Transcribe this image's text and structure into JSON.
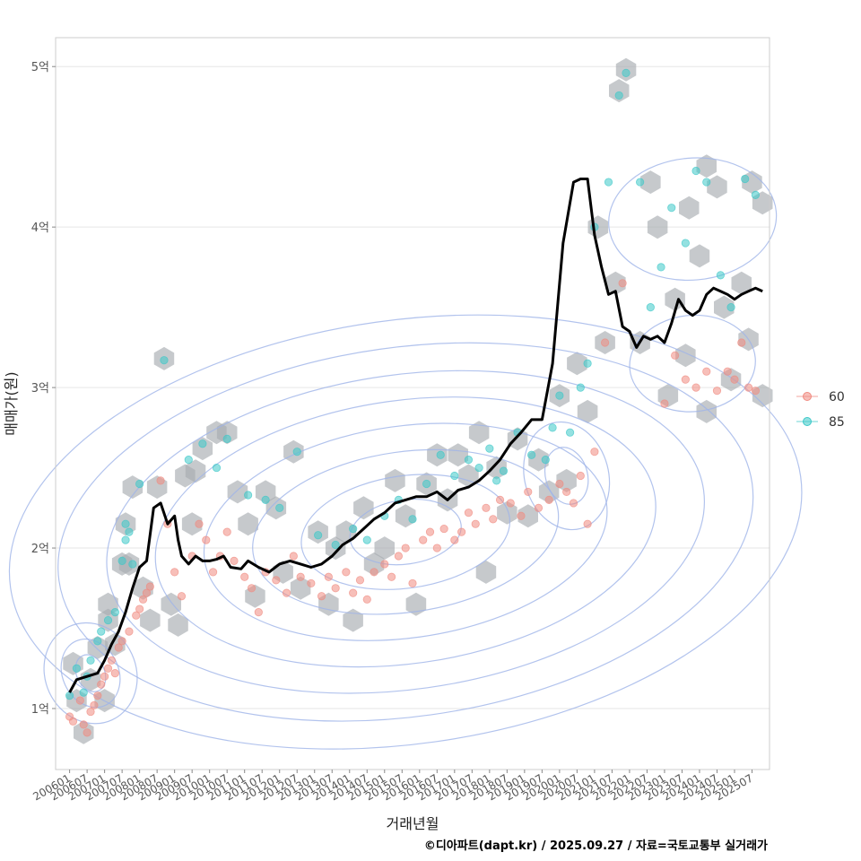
{
  "chart_data": {
    "type": "scatter",
    "title": "",
    "xlabel": "거래년월",
    "ylabel": "매매가(원)",
    "caption": "©디아파트(dapt.kr) / 2025.09.27 / 자료=국토교통부 실거래가",
    "x_tick_labels": [
      "200601",
      "200607",
      "200701",
      "200707",
      "200801",
      "200807",
      "200901",
      "200907",
      "201001",
      "201007",
      "201101",
      "201107",
      "201201",
      "201207",
      "201301",
      "201307",
      "201401",
      "201407",
      "201501",
      "201507",
      "201601",
      "201607",
      "201701",
      "201707",
      "201801",
      "201807",
      "201901",
      "201907",
      "202001",
      "202007",
      "202101",
      "202107",
      "202201",
      "202207",
      "202301",
      "202307",
      "202401",
      "202407",
      "202501",
      "202507"
    ],
    "y_ticks": [
      {
        "value": 1,
        "label": "1억"
      },
      {
        "value": 2,
        "label": "2억"
      },
      {
        "value": 3,
        "label": "3억"
      },
      {
        "value": 4,
        "label": "4억"
      },
      {
        "value": 5,
        "label": "5억"
      }
    ],
    "ylim": [
      0.62,
      5.18
    ],
    "xlim": [
      2005.6,
      2026.0
    ],
    "grid": true,
    "legend_position": "right",
    "colors": {
      "60": "#f08a80",
      "85": "#3cc8c8",
      "line": "#000000",
      "contour": "#9fb4e8",
      "hex": "#a8acb1"
    },
    "series": [
      {
        "name": "60",
        "points": [
          [
            2006.0,
            0.95
          ],
          [
            2006.1,
            0.92
          ],
          [
            2006.3,
            1.05
          ],
          [
            2006.4,
            0.9
          ],
          [
            2006.5,
            0.85
          ],
          [
            2006.6,
            0.98
          ],
          [
            2006.7,
            1.02
          ],
          [
            2006.8,
            1.08
          ],
          [
            2006.9,
            1.15
          ],
          [
            2007.0,
            1.2
          ],
          [
            2007.1,
            1.25
          ],
          [
            2007.2,
            1.3
          ],
          [
            2007.3,
            1.22
          ],
          [
            2007.4,
            1.38
          ],
          [
            2007.5,
            1.42
          ],
          [
            2007.7,
            1.48
          ],
          [
            2007.9,
            1.58
          ],
          [
            2008.0,
            1.62
          ],
          [
            2008.1,
            1.68
          ],
          [
            2008.2,
            1.72
          ],
          [
            2008.3,
            1.76
          ],
          [
            2008.6,
            2.42
          ],
          [
            2008.8,
            2.15
          ],
          [
            2009.0,
            1.85
          ],
          [
            2009.2,
            1.7
          ],
          [
            2009.5,
            1.95
          ],
          [
            2009.7,
            2.15
          ],
          [
            2009.9,
            2.05
          ],
          [
            2010.1,
            1.85
          ],
          [
            2010.3,
            1.95
          ],
          [
            2010.5,
            2.1
          ],
          [
            2010.7,
            1.92
          ],
          [
            2011.0,
            1.82
          ],
          [
            2011.2,
            1.75
          ],
          [
            2011.4,
            1.6
          ],
          [
            2011.6,
            1.85
          ],
          [
            2011.9,
            1.8
          ],
          [
            2012.2,
            1.72
          ],
          [
            2012.4,
            1.95
          ],
          [
            2012.6,
            1.82
          ],
          [
            2012.9,
            1.78
          ],
          [
            2013.2,
            1.7
          ],
          [
            2013.4,
            1.82
          ],
          [
            2013.6,
            1.75
          ],
          [
            2013.9,
            1.85
          ],
          [
            2014.1,
            1.72
          ],
          [
            2014.3,
            1.8
          ],
          [
            2014.5,
            1.68
          ],
          [
            2014.7,
            1.85
          ],
          [
            2015.0,
            1.9
          ],
          [
            2015.2,
            1.82
          ],
          [
            2015.4,
            1.95
          ],
          [
            2015.6,
            2.0
          ],
          [
            2015.8,
            1.78
          ],
          [
            2016.1,
            2.05
          ],
          [
            2016.3,
            2.1
          ],
          [
            2016.5,
            2.0
          ],
          [
            2016.7,
            2.12
          ],
          [
            2017.0,
            2.05
          ],
          [
            2017.2,
            2.1
          ],
          [
            2017.4,
            2.22
          ],
          [
            2017.6,
            2.15
          ],
          [
            2017.9,
            2.25
          ],
          [
            2018.1,
            2.18
          ],
          [
            2018.3,
            2.3
          ],
          [
            2018.6,
            2.28
          ],
          [
            2018.9,
            2.2
          ],
          [
            2019.1,
            2.35
          ],
          [
            2019.4,
            2.25
          ],
          [
            2019.7,
            2.3
          ],
          [
            2020.0,
            2.4
          ],
          [
            2020.2,
            2.35
          ],
          [
            2020.4,
            2.28
          ],
          [
            2020.6,
            2.45
          ],
          [
            2020.8,
            2.15
          ],
          [
            2021.0,
            2.6
          ],
          [
            2021.3,
            3.28
          ],
          [
            2021.8,
            3.65
          ],
          [
            2023.0,
            2.9
          ],
          [
            2023.3,
            3.2
          ],
          [
            2023.6,
            3.05
          ],
          [
            2023.9,
            3.0
          ],
          [
            2024.2,
            3.1
          ],
          [
            2024.5,
            2.98
          ],
          [
            2024.8,
            3.1
          ],
          [
            2025.0,
            3.05
          ],
          [
            2025.2,
            3.28
          ],
          [
            2025.4,
            3.0
          ],
          [
            2025.6,
            2.98
          ]
        ]
      },
      {
        "name": "85",
        "points": [
          [
            2006.0,
            1.08
          ],
          [
            2006.2,
            1.25
          ],
          [
            2006.4,
            1.1
          ],
          [
            2006.5,
            1.2
          ],
          [
            2006.6,
            1.3
          ],
          [
            2006.8,
            1.42
          ],
          [
            2006.9,
            1.48
          ],
          [
            2007.1,
            1.55
          ],
          [
            2007.3,
            1.6
          ],
          [
            2007.5,
            1.92
          ],
          [
            2007.6,
            2.05
          ],
          [
            2007.6,
            2.15
          ],
          [
            2007.7,
            2.1
          ],
          [
            2007.8,
            1.9
          ],
          [
            2008.0,
            2.4
          ],
          [
            2008.7,
            3.17
          ],
          [
            2009.4,
            2.55
          ],
          [
            2009.8,
            2.65
          ],
          [
            2010.2,
            2.5
          ],
          [
            2010.5,
            2.68
          ],
          [
            2011.1,
            2.33
          ],
          [
            2011.6,
            2.3
          ],
          [
            2012.0,
            2.25
          ],
          [
            2012.5,
            2.6
          ],
          [
            2013.1,
            2.08
          ],
          [
            2013.6,
            2.02
          ],
          [
            2014.1,
            2.12
          ],
          [
            2014.5,
            2.05
          ],
          [
            2015.0,
            2.2
          ],
          [
            2015.4,
            2.3
          ],
          [
            2015.8,
            2.18
          ],
          [
            2016.2,
            2.4
          ],
          [
            2016.6,
            2.58
          ],
          [
            2017.0,
            2.45
          ],
          [
            2017.4,
            2.55
          ],
          [
            2017.7,
            2.5
          ],
          [
            2018.0,
            2.62
          ],
          [
            2018.2,
            2.42
          ],
          [
            2018.4,
            2.48
          ],
          [
            2018.8,
            2.72
          ],
          [
            2019.2,
            2.58
          ],
          [
            2019.6,
            2.55
          ],
          [
            2019.8,
            2.75
          ],
          [
            2020.0,
            2.95
          ],
          [
            2020.3,
            2.72
          ],
          [
            2020.6,
            3.0
          ],
          [
            2020.8,
            3.15
          ],
          [
            2021.0,
            4.0
          ],
          [
            2021.4,
            4.28
          ],
          [
            2021.7,
            4.82
          ],
          [
            2021.9,
            4.96
          ],
          [
            2022.3,
            4.28
          ],
          [
            2022.6,
            3.5
          ],
          [
            2022.9,
            3.75
          ],
          [
            2023.2,
            4.12
          ],
          [
            2023.6,
            3.9
          ],
          [
            2023.9,
            4.35
          ],
          [
            2024.2,
            4.28
          ],
          [
            2024.6,
            3.7
          ],
          [
            2024.9,
            3.5
          ],
          [
            2025.3,
            4.3
          ],
          [
            2025.6,
            4.2
          ]
        ]
      }
    ],
    "median_line": {
      "x": [
        2006.0,
        2006.2,
        2006.5,
        2006.8,
        2007.0,
        2007.2,
        2007.4,
        2007.6,
        2007.8,
        2008.0,
        2008.2,
        2008.4,
        2008.6,
        2008.8,
        2009.0,
        2009.1,
        2009.2,
        2009.4,
        2009.6,
        2009.8,
        2010.0,
        2010.2,
        2010.4,
        2010.6,
        2010.9,
        2011.1,
        2011.4,
        2011.7,
        2012.0,
        2012.3,
        2012.6,
        2012.9,
        2013.2,
        2013.5,
        2013.8,
        2014.1,
        2014.4,
        2014.7,
        2015.0,
        2015.3,
        2015.6,
        2015.9,
        2016.2,
        2016.5,
        2016.8,
        2017.1,
        2017.4,
        2017.7,
        2018.0,
        2018.3,
        2018.6,
        2018.9,
        2019.2,
        2019.5,
        2019.8,
        2020.1,
        2020.4,
        2020.6,
        2020.8,
        2021.0,
        2021.2,
        2021.4,
        2021.6,
        2021.8,
        2022.0,
        2022.2,
        2022.4,
        2022.6,
        2022.8,
        2023.0,
        2023.2,
        2023.4,
        2023.6,
        2023.8,
        2024.0,
        2024.2,
        2024.4,
        2024.6,
        2024.8,
        2025.0,
        2025.2,
        2025.4,
        2025.6,
        2025.8
      ],
      "y": [
        1.1,
        1.18,
        1.2,
        1.22,
        1.3,
        1.4,
        1.48,
        1.6,
        1.75,
        1.88,
        1.92,
        2.25,
        2.28,
        2.15,
        2.2,
        2.05,
        1.95,
        1.9,
        1.95,
        1.92,
        1.92,
        1.93,
        1.95,
        1.88,
        1.87,
        1.92,
        1.88,
        1.85,
        1.9,
        1.92,
        1.9,
        1.88,
        1.9,
        1.95,
        2.02,
        2.06,
        2.12,
        2.18,
        2.22,
        2.28,
        2.3,
        2.32,
        2.32,
        2.35,
        2.3,
        2.36,
        2.38,
        2.42,
        2.48,
        2.55,
        2.65,
        2.72,
        2.8,
        2.8,
        3.15,
        3.9,
        4.28,
        4.3,
        4.3,
        3.95,
        3.75,
        3.58,
        3.6,
        3.38,
        3.35,
        3.25,
        3.32,
        3.3,
        3.32,
        3.28,
        3.4,
        3.55,
        3.48,
        3.45,
        3.48,
        3.58,
        3.62,
        3.6,
        3.58,
        3.55,
        3.58,
        3.6,
        3.62,
        3.6
      ]
    },
    "hex_cells": [
      [
        2006.1,
        1.28
      ],
      [
        2006.2,
        1.05
      ],
      [
        2006.4,
        0.85
      ],
      [
        2006.6,
        1.18
      ],
      [
        2006.8,
        1.38
      ],
      [
        2007.0,
        1.05
      ],
      [
        2007.1,
        1.55
      ],
      [
        2007.1,
        1.65
      ],
      [
        2007.3,
        1.4
      ],
      [
        2007.5,
        1.9
      ],
      [
        2007.6,
        2.15
      ],
      [
        2007.7,
        1.9
      ],
      [
        2007.8,
        2.38
      ],
      [
        2008.1,
        1.75
      ],
      [
        2008.3,
        1.55
      ],
      [
        2008.5,
        2.38
      ],
      [
        2008.7,
        3.18
      ],
      [
        2008.9,
        1.65
      ],
      [
        2009.1,
        1.52
      ],
      [
        2009.3,
        2.45
      ],
      [
        2009.5,
        2.15
      ],
      [
        2009.6,
        2.48
      ],
      [
        2009.8,
        2.62
      ],
      [
        2010.2,
        2.72
      ],
      [
        2010.5,
        2.72
      ],
      [
        2010.8,
        2.35
      ],
      [
        2011.1,
        2.15
      ],
      [
        2011.3,
        1.7
      ],
      [
        2011.6,
        2.35
      ],
      [
        2011.9,
        2.25
      ],
      [
        2012.1,
        1.85
      ],
      [
        2012.4,
        2.6
      ],
      [
        2012.6,
        1.75
      ],
      [
        2013.1,
        2.1
      ],
      [
        2013.4,
        1.65
      ],
      [
        2013.6,
        2.0
      ],
      [
        2013.9,
        2.1
      ],
      [
        2014.1,
        1.55
      ],
      [
        2014.4,
        2.25
      ],
      [
        2014.7,
        1.9
      ],
      [
        2015.0,
        2.0
      ],
      [
        2015.3,
        2.42
      ],
      [
        2015.6,
        2.2
      ],
      [
        2015.9,
        1.65
      ],
      [
        2016.2,
        2.4
      ],
      [
        2016.5,
        2.58
      ],
      [
        2016.8,
        2.3
      ],
      [
        2017.1,
        2.58
      ],
      [
        2017.4,
        2.45
      ],
      [
        2017.7,
        2.72
      ],
      [
        2017.9,
        1.85
      ],
      [
        2018.2,
        2.5
      ],
      [
        2018.5,
        2.22
      ],
      [
        2018.8,
        2.68
      ],
      [
        2019.1,
        2.2
      ],
      [
        2019.4,
        2.55
      ],
      [
        2019.7,
        2.35
      ],
      [
        2020.0,
        2.95
      ],
      [
        2020.2,
        2.42
      ],
      [
        2020.5,
        3.15
      ],
      [
        2020.8,
        2.85
      ],
      [
        2021.1,
        4.0
      ],
      [
        2021.3,
        3.28
      ],
      [
        2021.6,
        3.65
      ],
      [
        2021.7,
        4.85
      ],
      [
        2021.9,
        4.98
      ],
      [
        2022.3,
        3.28
      ],
      [
        2022.6,
        4.28
      ],
      [
        2022.8,
        4.0
      ],
      [
        2023.1,
        2.95
      ],
      [
        2023.3,
        3.55
      ],
      [
        2023.6,
        3.2
      ],
      [
        2023.7,
        4.12
      ],
      [
        2024.0,
        3.82
      ],
      [
        2024.2,
        2.85
      ],
      [
        2024.2,
        4.38
      ],
      [
        2024.5,
        4.25
      ],
      [
        2024.7,
        3.5
      ],
      [
        2024.9,
        3.05
      ],
      [
        2025.2,
        3.65
      ],
      [
        2025.4,
        3.3
      ],
      [
        2025.5,
        4.28
      ],
      [
        2025.8,
        4.15
      ],
      [
        2025.8,
        2.95
      ]
    ],
    "contours": [
      {
        "cx": 2015.6,
        "cy": 2.1,
        "rx": 1.6,
        "ry": 0.2,
        "rot": -8
      },
      {
        "cx": 2015.6,
        "cy": 2.1,
        "rx": 3.0,
        "ry": 0.35,
        "rot": -8
      },
      {
        "cx": 2015.6,
        "cy": 2.1,
        "rx": 4.4,
        "ry": 0.5,
        "rot": -8
      },
      {
        "cx": 2015.6,
        "cy": 2.1,
        "rx": 5.8,
        "ry": 0.66,
        "rot": -8
      },
      {
        "cx": 2015.6,
        "cy": 2.1,
        "rx": 7.2,
        "ry": 0.82,
        "rot": -8
      },
      {
        "cx": 2015.6,
        "cy": 2.1,
        "rx": 8.6,
        "ry": 0.98,
        "rot": -8
      },
      {
        "cx": 2015.6,
        "cy": 2.1,
        "rx": 10.0,
        "ry": 1.15,
        "rot": -8
      },
      {
        "cx": 2015.6,
        "cy": 2.1,
        "rx": 11.4,
        "ry": 1.32,
        "rot": -8
      },
      {
        "cx": 2006.6,
        "cy": 1.22,
        "rx": 0.4,
        "ry": 0.12,
        "rot": -25
      },
      {
        "cx": 2006.6,
        "cy": 1.22,
        "rx": 0.8,
        "ry": 0.22,
        "rot": -25
      },
      {
        "cx": 2006.6,
        "cy": 1.22,
        "rx": 1.3,
        "ry": 0.32,
        "rot": -25
      },
      {
        "cx": 2020.2,
        "cy": 2.45,
        "rx": 0.6,
        "ry": 0.18,
        "rot": -15
      },
      {
        "cx": 2020.2,
        "cy": 2.45,
        "rx": 1.2,
        "ry": 0.34,
        "rot": -15
      },
      {
        "cx": 2023.8,
        "cy": 3.15,
        "rx": 1.8,
        "ry": 0.3,
        "rot": -5
      },
      {
        "cx": 2023.8,
        "cy": 4.05,
        "rx": 2.4,
        "ry": 0.38,
        "rot": -5
      }
    ]
  },
  "legend": [
    {
      "label": "60",
      "color": "#f08a80"
    },
    {
      "label": "85",
      "color": "#3cc8c8"
    }
  ]
}
